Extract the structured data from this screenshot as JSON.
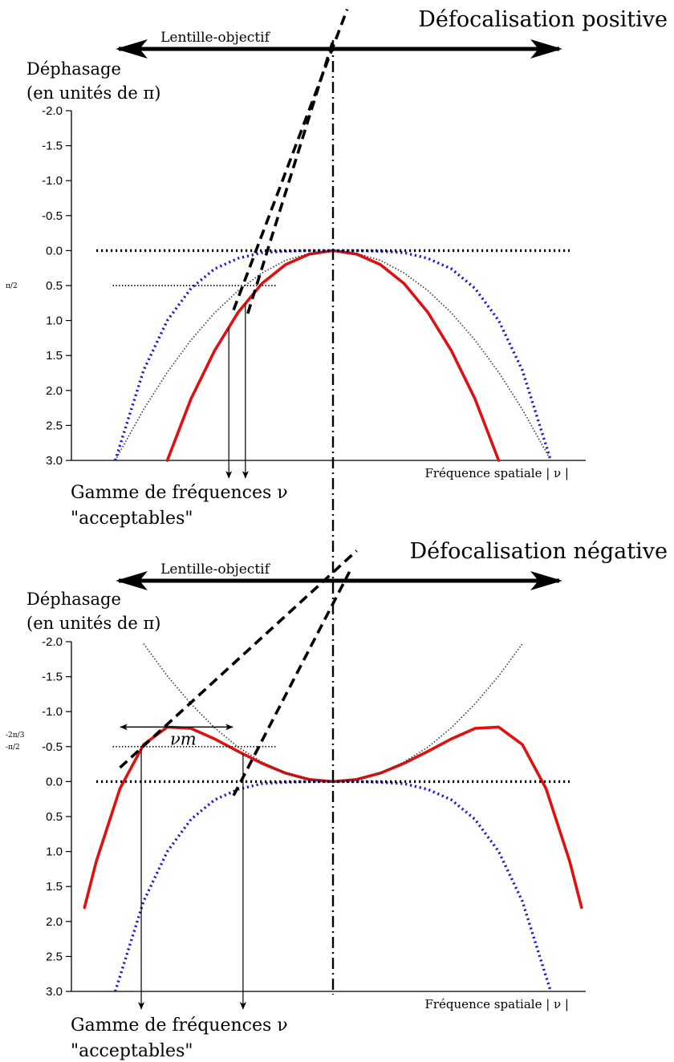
{
  "chart_data": [
    {
      "type": "line",
      "title": "Défocalisation positive",
      "lens_label": "Lentille-objectif",
      "ylabel": [
        "Déphasage",
        "(en unités de π)"
      ],
      "xlabel": "Fréquence spatiale | ν |",
      "y_ticks": [
        "-2.0",
        "-1.5",
        "-1.0",
        "-0.5",
        "0.0",
        "0.5",
        "1.0",
        "1.5",
        "2.0",
        "2.5",
        "3.0"
      ],
      "y_tick_values": [
        -2.0,
        -1.5,
        -1.0,
        -0.5,
        0.0,
        0.5,
        1.0,
        1.5,
        2.0,
        2.5,
        3.0
      ],
      "ylim": [
        -2.0,
        3.0
      ],
      "xlim": [
        -1.0,
        1.0
      ],
      "side_tick_labels": [
        {
          "label": "π/2",
          "y": 0.5
        }
      ],
      "range_label": [
        "Gamme de fréquences ν",
        "\"acceptables\""
      ],
      "acceptable_range_x": [
        -0.44,
        -0.37
      ],
      "series": [
        {
          "color": "#e01010",
          "style": "solid",
          "x": [
            -0.7,
            -0.6,
            -0.5,
            -0.4,
            -0.3,
            -0.2,
            -0.1,
            0.0,
            0.1,
            0.2,
            0.3,
            0.4,
            0.5,
            0.6,
            0.7
          ],
          "y": [
            3.0,
            2.12,
            1.43,
            0.88,
            0.47,
            0.2,
            0.05,
            0.0,
            0.05,
            0.2,
            0.47,
            0.88,
            1.43,
            2.12,
            3.0
          ]
        },
        {
          "color": "#1a1acc",
          "style": "dotted",
          "x": [
            -0.92,
            -0.8,
            -0.7,
            -0.6,
            -0.5,
            -0.4,
            -0.3,
            -0.2,
            -0.1,
            0.0,
            0.1,
            0.2,
            0.3,
            0.4,
            0.5,
            0.6,
            0.7,
            0.8,
            0.92
          ],
          "y": [
            3.0,
            1.71,
            1.0,
            0.54,
            0.26,
            0.11,
            0.03,
            0.01,
            0.0,
            0.0,
            0.0,
            0.01,
            0.03,
            0.11,
            0.26,
            0.54,
            1.0,
            1.71,
            3.0
          ]
        },
        {
          "color": "#333333",
          "style": "fine-dotted",
          "x": [
            -0.92,
            -0.8,
            -0.7,
            -0.6,
            -0.5,
            -0.4,
            -0.3,
            -0.2,
            -0.1,
            0.0,
            0.1,
            0.2,
            0.3,
            0.4,
            0.5,
            0.6,
            0.7,
            0.8,
            0.92
          ],
          "y": [
            3.0,
            2.27,
            1.74,
            1.28,
            0.89,
            0.57,
            0.32,
            0.14,
            0.04,
            0.0,
            0.04,
            0.14,
            0.32,
            0.57,
            0.89,
            1.28,
            1.74,
            2.27,
            3.0
          ]
        },
        {
          "color": "#000000",
          "style": "dashed",
          "x": [
            -0.42,
            0.06
          ],
          "y": [
            0.85,
            -3.45
          ]
        },
        {
          "color": "#000000",
          "style": "dashed",
          "x": [
            -0.36,
            0.0
          ],
          "y": [
            0.9,
            -3.0
          ]
        },
        {
          "color": "#000000",
          "style": "dotted",
          "x": [
            -1.0,
            1.0
          ],
          "y": [
            0.0,
            0.0
          ]
        },
        {
          "color": "#000000",
          "style": "fine-dotted",
          "x": [
            -0.93,
            -0.24
          ],
          "y": [
            0.5,
            0.5
          ]
        }
      ]
    },
    {
      "type": "line",
      "title": "Défocalisation négative",
      "lens_label": "Lentille-objectif",
      "ylabel": [
        "Déphasage",
        "(en unités de π)"
      ],
      "xlabel": "Fréquence spatiale | ν |",
      "y_ticks": [
        "-2.0",
        "-1.5",
        "-1.0",
        "-0.5",
        "0.0",
        "0.5",
        "1.0",
        "1.5",
        "2.0",
        "2.5",
        "3.0"
      ],
      "y_tick_values": [
        -2.0,
        -1.5,
        -1.0,
        -0.5,
        0.0,
        0.5,
        1.0,
        1.5,
        2.0,
        2.5,
        3.0
      ],
      "ylim": [
        -2.0,
        3.0
      ],
      "xlim": [
        -1.0,
        1.0
      ],
      "side_tick_labels": [
        {
          "label": "-2π/3",
          "y": -0.67
        },
        {
          "label": "-π/2",
          "y": -0.5
        }
      ],
      "nu_m_label": "νm",
      "range_label": [
        "Gamme de fréquences ν",
        "\"acceptables\""
      ],
      "acceptable_range_x": [
        -0.81,
        -0.38
      ],
      "series": [
        {
          "color": "#e01010",
          "style": "solid",
          "x": [
            -1.05,
            -1.0,
            -0.9,
            -0.8,
            -0.7,
            -0.6,
            -0.5,
            -0.4,
            -0.3,
            -0.2,
            -0.1,
            0.0,
            0.1,
            0.2,
            0.3,
            0.4,
            0.5,
            0.6,
            0.7,
            0.8,
            0.9,
            1.0,
            1.05
          ],
          "y": [
            1.8,
            1.14,
            0.1,
            -0.53,
            -0.78,
            -0.76,
            -0.61,
            -0.43,
            -0.26,
            -0.12,
            -0.03,
            0.0,
            -0.03,
            -0.12,
            -0.26,
            -0.43,
            -0.61,
            -0.76,
            -0.78,
            -0.53,
            0.1,
            1.14,
            1.8
          ]
        },
        {
          "color": "#1a1acc",
          "style": "dotted",
          "x": [
            -0.92,
            -0.8,
            -0.7,
            -0.6,
            -0.5,
            -0.4,
            -0.3,
            -0.2,
            -0.1,
            0.0,
            0.1,
            0.2,
            0.3,
            0.4,
            0.5,
            0.6,
            0.7,
            0.8,
            0.92
          ],
          "y": [
            3.0,
            1.71,
            1.0,
            0.54,
            0.26,
            0.11,
            0.03,
            0.01,
            0.0,
            0.0,
            0.0,
            0.01,
            0.03,
            0.11,
            0.26,
            0.54,
            1.0,
            1.71,
            3.0
          ]
        },
        {
          "color": "#333333",
          "style": "fine-dotted",
          "x": [
            -0.8,
            -0.7,
            -0.6,
            -0.5,
            -0.4,
            -0.3,
            -0.2,
            -0.1,
            0.0,
            0.1,
            0.2,
            0.3,
            0.4,
            0.5,
            0.6,
            0.7,
            0.8
          ],
          "y": [
            -1.97,
            -1.51,
            -1.11,
            -0.77,
            -0.49,
            -0.28,
            -0.12,
            -0.03,
            0.0,
            -0.03,
            -0.12,
            -0.28,
            -0.49,
            -0.77,
            -1.11,
            -1.51,
            -1.97
          ]
        },
        {
          "color": "#000000",
          "style": "dashed",
          "x": [
            -0.9,
            0.1
          ],
          "y": [
            -0.2,
            -3.3
          ]
        },
        {
          "color": "#000000",
          "style": "dashed",
          "x": [
            -0.42,
            0.07
          ],
          "y": [
            0.2,
            -3.0
          ]
        },
        {
          "color": "#000000",
          "style": "dotted",
          "x": [
            -1.0,
            1.0
          ],
          "y": [
            0.0,
            0.0
          ]
        },
        {
          "color": "#000000",
          "style": "fine-dotted",
          "x": [
            -0.93,
            -0.24
          ],
          "y": [
            -0.5,
            -0.5
          ]
        }
      ]
    }
  ]
}
